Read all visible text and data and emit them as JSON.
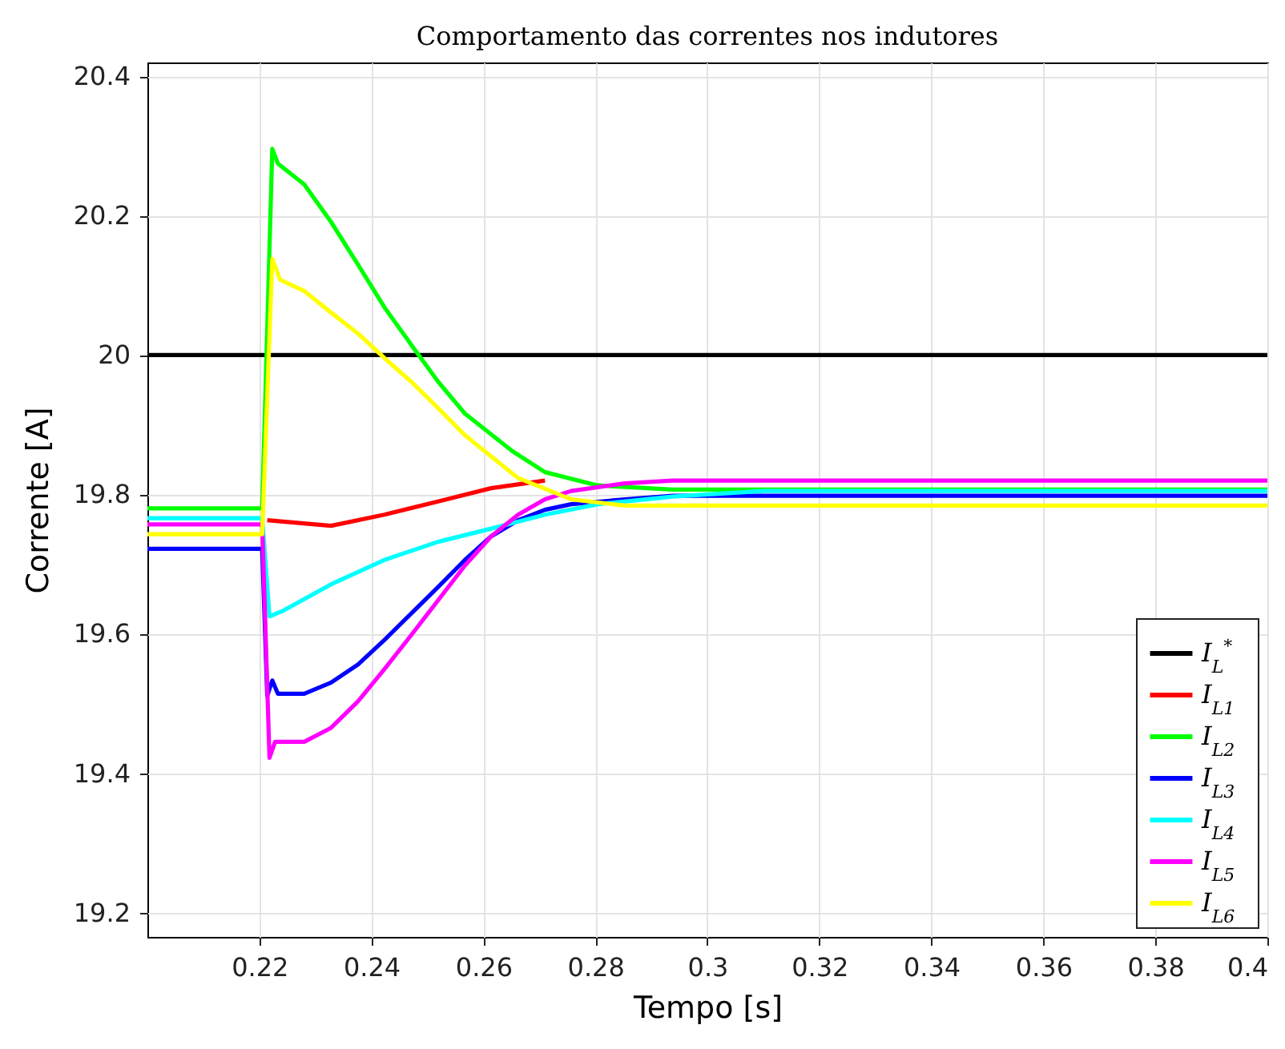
{
  "chart_data": {
    "type": "line",
    "title": "Comportamento das correntes nos indutores",
    "xlabel": "Tempo [s]",
    "ylabel": "Corrente [A]",
    "xlim": [
      0.2,
      0.4
    ],
    "xticks": [
      0.22,
      0.24,
      0.26,
      0.28,
      0.3,
      0.32,
      0.34,
      0.36,
      0.38,
      0.4
    ],
    "ylim": [
      19.165,
      20.42
    ],
    "yticks": [
      19.2,
      19.4,
      19.6,
      19.8,
      20,
      20.2,
      20.4
    ],
    "grid": true,
    "legend": "bottom right",
    "series": [
      {
        "name": "I$_{L}$$^{*}$",
        "color": "#000000",
        "x": [
          0.2,
          0.4
        ],
        "values": [
          20,
          20
        ]
      },
      {
        "name": "I$_{L1}$",
        "color": "#ff0000",
        "x": [
          0.2214,
          0.2328,
          0.2423,
          0.2519,
          0.2614,
          0.271
        ],
        "values": [
          19.763,
          19.755,
          19.771,
          19.79,
          19.809,
          19.82
        ]
      },
      {
        "name": "I$_{L2}$",
        "color": "#00ff00",
        "x": [
          0.2,
          0.2205,
          0.2223,
          0.2233,
          0.228,
          0.2328,
          0.2376,
          0.2423,
          0.2471,
          0.2519,
          0.2567,
          0.2652,
          0.271,
          0.2804,
          0.2938,
          0.4
        ],
        "values": [
          19.78,
          19.78,
          20.296,
          20.275,
          20.245,
          20.191,
          20.13,
          20.069,
          20.015,
          19.962,
          19.916,
          19.862,
          19.832,
          19.813,
          19.807,
          19.807
        ]
      },
      {
        "name": "I$_{L3}$",
        "color": "#0000ff",
        "x": [
          0.2,
          0.2205,
          0.2214,
          0.2223,
          0.2233,
          0.228,
          0.2328,
          0.2376,
          0.2423,
          0.2471,
          0.2519,
          0.2567,
          0.2614,
          0.2662,
          0.271,
          0.2757,
          0.2853,
          0.2938,
          0.4
        ],
        "values": [
          19.722,
          19.722,
          19.511,
          19.533,
          19.514,
          19.514,
          19.53,
          19.556,
          19.591,
          19.629,
          19.667,
          19.706,
          19.74,
          19.763,
          19.778,
          19.786,
          19.793,
          19.798,
          19.798
        ]
      },
      {
        "name": "I$_{L4}$",
        "color": "#00ffff",
        "x": [
          0.2,
          0.2205,
          0.2218,
          0.2242,
          0.2328,
          0.2423,
          0.2519,
          0.2614,
          0.271,
          0.2805,
          0.2938,
          0.31,
          0.4
        ],
        "values": [
          19.766,
          19.766,
          19.625,
          19.633,
          19.671,
          19.706,
          19.732,
          19.751,
          19.771,
          19.786,
          19.797,
          19.805,
          19.805
        ]
      },
      {
        "name": "I$_{L5}$",
        "color": "#ff00ff",
        "x": [
          0.2,
          0.2205,
          0.2218,
          0.2228,
          0.228,
          0.2328,
          0.2376,
          0.2423,
          0.2471,
          0.2519,
          0.2567,
          0.2614,
          0.2662,
          0.271,
          0.2757,
          0.2853,
          0.2938,
          0.4
        ],
        "values": [
          19.757,
          19.757,
          19.422,
          19.445,
          19.445,
          19.465,
          19.503,
          19.549,
          19.598,
          19.648,
          19.698,
          19.74,
          19.771,
          19.793,
          19.805,
          19.816,
          19.82,
          19.82
        ]
      },
      {
        "name": "I$_{L6}$",
        "color": "#ffff00",
        "x": [
          0.2,
          0.2205,
          0.2223,
          0.2237,
          0.228,
          0.2328,
          0.2376,
          0.2423,
          0.2471,
          0.2519,
          0.2567,
          0.2661,
          0.2757,
          0.2853,
          0.2938,
          0.4
        ],
        "values": [
          19.743,
          19.743,
          20.138,
          20.108,
          20.092,
          20.061,
          20.031,
          19.996,
          19.962,
          19.924,
          19.885,
          19.824,
          19.793,
          19.784,
          19.784,
          19.784
        ]
      }
    ]
  }
}
